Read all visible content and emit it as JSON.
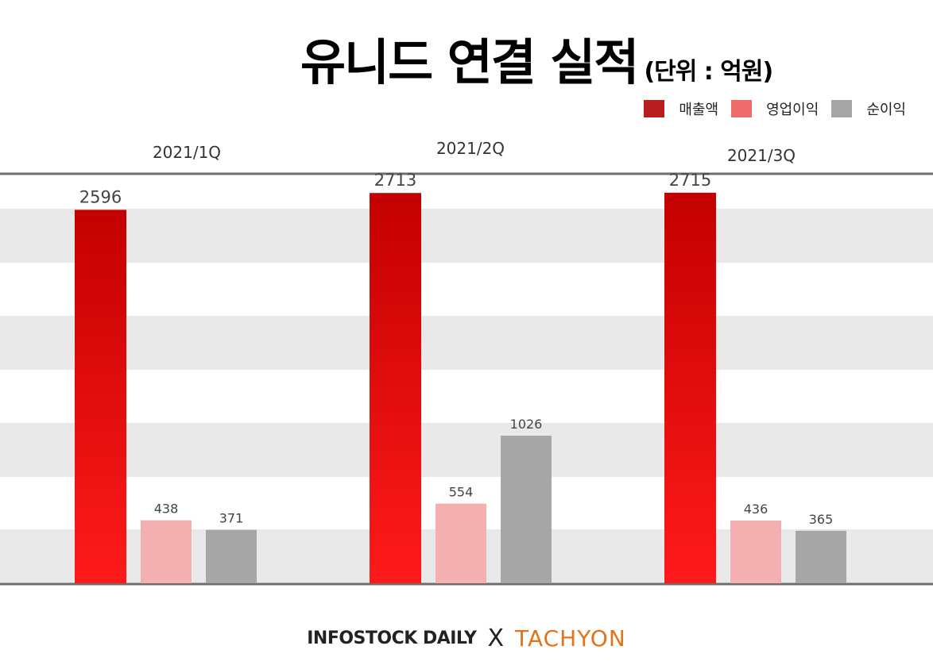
{
  "title": "유니드 연결 실적",
  "unit": "(단위 : 억원)",
  "legend": [
    {
      "label": "매출액",
      "color": "#b81c1c"
    },
    {
      "label": "영업이익",
      "color": "#ee6b6b"
    },
    {
      "label": "순이익",
      "color": "#a5a5a5"
    }
  ],
  "chart_data": {
    "type": "bar",
    "title": "유니드 연결 실적",
    "categories": [
      "2021/1Q",
      "2021/2Q",
      "2021/3Q"
    ],
    "series": [
      {
        "name": "매출액",
        "values": [
          2596,
          2713,
          2715
        ],
        "color": "#e41414"
      },
      {
        "name": "영업이익",
        "values": [
          438,
          554,
          436
        ],
        "color": "#f4b0b0"
      },
      {
        "name": "순이익",
        "values": [
          371,
          1026,
          365
        ],
        "color": "#a6a6a6"
      }
    ],
    "xlabel": "",
    "ylabel": "",
    "ylim": [
      0,
      2830
    ],
    "grid": true,
    "legend_position": "top-right"
  },
  "footer": {
    "brand_left": "INFOSTOCK DAILY",
    "separator": "X",
    "brand_right": "TACHYON"
  }
}
